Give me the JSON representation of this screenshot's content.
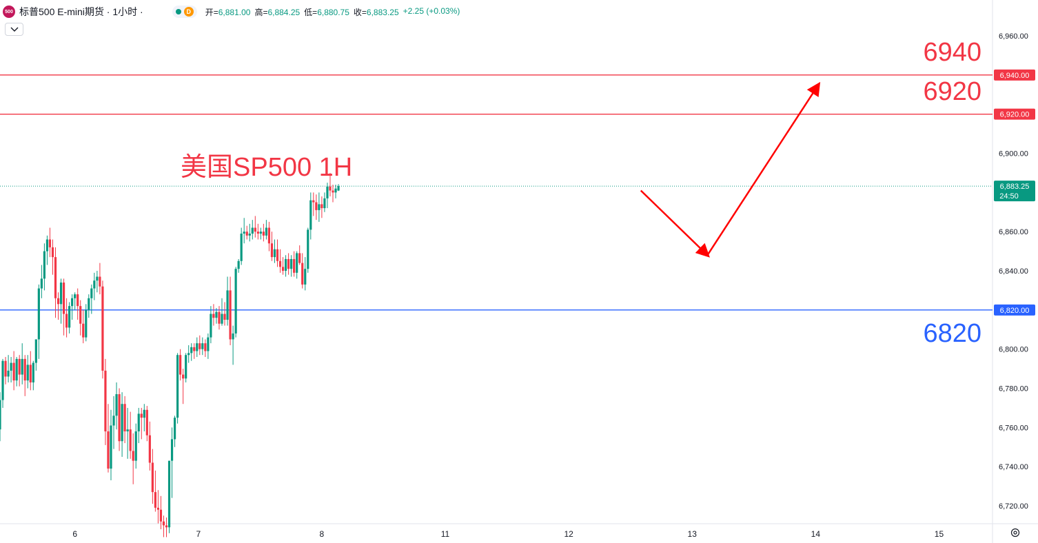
{
  "header": {
    "logo_text": "500",
    "title": "标普500 E-mini期货 · 1小时 ·",
    "status_badge": "D",
    "ohlc": [
      {
        "label": "开=",
        "value": "6,881.00"
      },
      {
        "label": "高=",
        "value": "6,884.25"
      },
      {
        "label": "低=",
        "value": "6,880.75"
      },
      {
        "label": "收=",
        "value": "6,883.25"
      },
      {
        "label": "",
        "value": "+2.25 (+0.03%)"
      }
    ]
  },
  "colors": {
    "up": "#089981",
    "down": "#f23645",
    "resistance": "#f23645",
    "support": "#2962ff",
    "arrow": "#ff0000"
  },
  "annotations": {
    "chart_label": "美国SP500 1H",
    "level_6940": "6940",
    "level_6920": "6920",
    "level_6820": "6820"
  },
  "chart_data": {
    "type": "candlestick",
    "ylim": [
      6711,
      6970
    ],
    "y_ticks": [
      "6,960.00",
      "6,940.00",
      "6,920.00",
      "6,900.00",
      "6,880.00",
      "6,860.00",
      "6,840.00",
      "6,820.00",
      "6,800.00",
      "6,780.00",
      "6,760.00",
      "6,740.00",
      "6,720.00"
    ],
    "x_ticks": [
      {
        "label": "6",
        "slot": 27
      },
      {
        "label": "7",
        "slot": 71.5
      },
      {
        "label": "8",
        "slot": 116
      },
      {
        "label": "11",
        "slot": 160.5
      },
      {
        "label": "12",
        "slot": 205
      },
      {
        "label": "13",
        "slot": 249.5
      },
      {
        "label": "14",
        "slot": 294
      },
      {
        "label": "15",
        "slot": 338.5
      }
    ],
    "horizontal_lines": [
      {
        "value": 6940,
        "label": "6,940.00",
        "color": "#f23645"
      },
      {
        "value": 6920,
        "label": "6,920.00",
        "color": "#f23645"
      },
      {
        "value": 6820,
        "label": "6,820.00",
        "color": "#2962ff"
      }
    ],
    "last_price": {
      "value": 6883.25,
      "label": "6,883.25",
      "countdown": "24:50"
    },
    "projection": [
      {
        "slot": 231,
        "value": 6881
      },
      {
        "slot": 255,
        "value": 6848
      },
      {
        "slot": 295,
        "value": 6935
      }
    ],
    "candles": [
      [
        6759,
        6778,
        6753,
        6774
      ],
      [
        6774,
        6795,
        6770,
        6794
      ],
      [
        6794,
        6796,
        6782,
        6786
      ],
      [
        6786,
        6797,
        6783,
        6789
      ],
      [
        6789,
        6796,
        6783,
        6793
      ],
      [
        6793,
        6799,
        6779,
        6784
      ],
      [
        6784,
        6796,
        6781,
        6795
      ],
      [
        6795,
        6797,
        6781,
        6787
      ],
      [
        6787,
        6803,
        6782,
        6795
      ],
      [
        6795,
        6797,
        6776,
        6784
      ],
      [
        6784,
        6797,
        6780,
        6792
      ],
      [
        6792,
        6799,
        6779,
        6783
      ],
      [
        6783,
        6794,
        6779,
        6793
      ],
      [
        6793,
        6805,
        6789,
        6805
      ],
      [
        6805,
        6833,
        6795,
        6831
      ],
      [
        6831,
        6843,
        6826,
        6836
      ],
      [
        6836,
        6854,
        6830,
        6850
      ],
      [
        6850,
        6858,
        6843,
        6856
      ],
      [
        6856,
        6862,
        6847,
        6852
      ],
      [
        6852,
        6856,
        6838,
        6847
      ],
      [
        6847,
        6852,
        6816,
        6826
      ],
      [
        6826,
        6829,
        6815,
        6823
      ],
      [
        6823,
        6836,
        6813,
        6834
      ],
      [
        6834,
        6836,
        6807,
        6818
      ],
      [
        6818,
        6826,
        6806,
        6811
      ],
      [
        6811,
        6824,
        6808,
        6822
      ],
      [
        6822,
        6828,
        6815,
        6826
      ],
      [
        6826,
        6829,
        6820,
        6828
      ],
      [
        6828,
        6831,
        6815,
        6822
      ],
      [
        6822,
        6825,
        6807,
        6813
      ],
      [
        6813,
        6820,
        6803,
        6806
      ],
      [
        6806,
        6823,
        6804,
        6820
      ],
      [
        6820,
        6828,
        6816,
        6826
      ],
      [
        6826,
        6833,
        6818,
        6831
      ],
      [
        6831,
        6839,
        6825,
        6835
      ],
      [
        6835,
        6840,
        6829,
        6837
      ],
      [
        6837,
        6844,
        6828,
        6832
      ],
      [
        6832,
        6835,
        6785,
        6789
      ],
      [
        6789,
        6795,
        6751,
        6758
      ],
      [
        6758,
        6772,
        6737,
        6739
      ],
      [
        6739,
        6769,
        6733,
        6761
      ],
      [
        6761,
        6776,
        6749,
        6766
      ],
      [
        6766,
        6783,
        6759,
        6777
      ],
      [
        6777,
        6780,
        6748,
        6753
      ],
      [
        6753,
        6778,
        6745,
        6772
      ],
      [
        6772,
        6776,
        6752,
        6758
      ],
      [
        6758,
        6770,
        6744,
        6759
      ],
      [
        6759,
        6768,
        6744,
        6748
      ],
      [
        6748,
        6757,
        6731,
        6743
      ],
      [
        6743,
        6762,
        6739,
        6758
      ],
      [
        6758,
        6770,
        6752,
        6767
      ],
      [
        6767,
        6770,
        6754,
        6765
      ],
      [
        6765,
        6772,
        6758,
        6769
      ],
      [
        6769,
        6771,
        6753,
        6756
      ],
      [
        6756,
        6763,
        6738,
        6742
      ],
      [
        6742,
        6749,
        6721,
        6727
      ],
      [
        6727,
        6738,
        6717,
        6719
      ],
      [
        6719,
        6728,
        6711,
        6718
      ],
      [
        6718,
        6725,
        6708,
        6712
      ],
      [
        6712,
        6715,
        6704,
        6710
      ],
      [
        6710,
        6714,
        6704,
        6709
      ],
      [
        6709,
        6743,
        6706,
        6743
      ],
      [
        6743,
        6760,
        6724,
        6754
      ],
      [
        6754,
        6766,
        6750,
        6765
      ],
      [
        6765,
        6798,
        6762,
        6797
      ],
      [
        6797,
        6800,
        6784,
        6787
      ],
      [
        6787,
        6790,
        6772,
        6785
      ],
      [
        6785,
        6798,
        6783,
        6797
      ],
      [
        6797,
        6802,
        6793,
        6798
      ],
      [
        6798,
        6803,
        6794,
        6801
      ],
      [
        6801,
        6803,
        6795,
        6799
      ],
      [
        6799,
        6806,
        6796,
        6803
      ],
      [
        6803,
        6807,
        6797,
        6800
      ],
      [
        6800,
        6806,
        6797,
        6803
      ],
      [
        6803,
        6805,
        6796,
        6799
      ],
      [
        6799,
        6808,
        6795,
        6806
      ],
      [
        6806,
        6822,
        6803,
        6818
      ],
      [
        6818,
        6823,
        6812,
        6816
      ],
      [
        6816,
        6821,
        6813,
        6819
      ],
      [
        6819,
        6822,
        6810,
        6813
      ],
      [
        6813,
        6826,
        6812,
        6818
      ],
      [
        6818,
        6824,
        6812,
        6815
      ],
      [
        6815,
        6837,
        6812,
        6830
      ],
      [
        6830,
        6837,
        6802,
        6805
      ],
      [
        6805,
        6812,
        6792,
        6808
      ],
      [
        6808,
        6842,
        6806,
        6841
      ],
      [
        6841,
        6846,
        6839,
        6845
      ],
      [
        6845,
        6862,
        6843,
        6859
      ],
      [
        6859,
        6867,
        6854,
        6860
      ],
      [
        6860,
        6863,
        6856,
        6858
      ],
      [
        6858,
        6864,
        6855,
        6859
      ],
      [
        6859,
        6866,
        6856,
        6862
      ],
      [
        6862,
        6868,
        6857,
        6860
      ],
      [
        6860,
        6864,
        6856,
        6859
      ],
      [
        6859,
        6862,
        6856,
        6860
      ],
      [
        6860,
        6864,
        6855,
        6858
      ],
      [
        6858,
        6866,
        6856,
        6862
      ],
      [
        6862,
        6865,
        6850,
        6854
      ],
      [
        6854,
        6860,
        6845,
        6847
      ],
      [
        6847,
        6856,
        6844,
        6851
      ],
      [
        6851,
        6856,
        6842,
        6845
      ],
      [
        6845,
        6851,
        6839,
        6842
      ],
      [
        6842,
        6847,
        6838,
        6840
      ],
      [
        6840,
        6848,
        6837,
        6846
      ],
      [
        6846,
        6849,
        6838,
        6841
      ],
      [
        6841,
        6848,
        6837,
        6846
      ],
      [
        6846,
        6850,
        6837,
        6839
      ],
      [
        6839,
        6850,
        6836,
        6849
      ],
      [
        6849,
        6853,
        6843,
        6844
      ],
      [
        6844,
        6849,
        6831,
        6833
      ],
      [
        6833,
        6847,
        6830,
        6841
      ],
      [
        6841,
        6862,
        6839,
        6861
      ],
      [
        6861,
        6880,
        6856,
        6876
      ],
      [
        6876,
        6880,
        6868,
        6875
      ],
      [
        6875,
        6879,
        6866,
        6871
      ],
      [
        6871,
        6880,
        6865,
        6874
      ],
      [
        6874,
        6878,
        6867,
        6872
      ],
      [
        6872,
        6880,
        6870,
        6877
      ],
      [
        6877,
        6885,
        6872,
        6883
      ],
      [
        6883,
        6890,
        6878,
        6881
      ],
      [
        6881,
        6884,
        6875,
        6880
      ],
      [
        6880,
        6884,
        6877,
        6882
      ],
      [
        6881,
        6884.25,
        6880.75,
        6883.25
      ]
    ]
  }
}
